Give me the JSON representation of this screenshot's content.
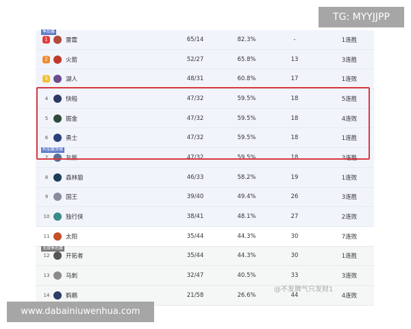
{
  "overlay": {
    "tg": "TG: MYYJJPP",
    "site": "www.dabainiuwenhua.com",
    "watermark": "@不发脾气只发财1"
  },
  "tags": {
    "playoffs": "季后赛",
    "playin": "附加赛资格",
    "out": "无缘季后赛"
  },
  "colors": {
    "highlight": "#d9363e",
    "tag": "#5b78c8"
  },
  "rows": [
    {
      "rank": "1",
      "team": "雷霆",
      "record": "65/14",
      "pct": "82.3%",
      "gb": "-",
      "streak": "1连胜"
    },
    {
      "rank": "2",
      "team": "火箭",
      "record": "52/27",
      "pct": "65.8%",
      "gb": "13",
      "streak": "3连胜"
    },
    {
      "rank": "3",
      "team": "湖人",
      "record": "48/31",
      "pct": "60.8%",
      "gb": "17",
      "streak": "1连败"
    },
    {
      "rank": "4",
      "team": "快船",
      "record": "47/32",
      "pct": "59.5%",
      "gb": "18",
      "streak": "5连胜"
    },
    {
      "rank": "5",
      "team": "掘金",
      "record": "47/32",
      "pct": "59.5%",
      "gb": "18",
      "streak": "4连败"
    },
    {
      "rank": "6",
      "team": "勇士",
      "record": "47/32",
      "pct": "59.5%",
      "gb": "18",
      "streak": "1连胜"
    },
    {
      "rank": "7",
      "team": "灰熊",
      "record": "47/32",
      "pct": "59.5%",
      "gb": "18",
      "streak": "3连胜"
    },
    {
      "rank": "8",
      "team": "森林狼",
      "record": "46/33",
      "pct": "58.2%",
      "gb": "19",
      "streak": "1连败"
    },
    {
      "rank": "9",
      "team": "国王",
      "record": "39/40",
      "pct": "49.4%",
      "gb": "26",
      "streak": "3连胜"
    },
    {
      "rank": "10",
      "team": "独行侠",
      "record": "38/41",
      "pct": "48.1%",
      "gb": "27",
      "streak": "2连败"
    },
    {
      "rank": "11",
      "team": "太阳",
      "record": "35/44",
      "pct": "44.3%",
      "gb": "30",
      "streak": "7连败"
    },
    {
      "rank": "12",
      "team": "开拓者",
      "record": "35/44",
      "pct": "44.3%",
      "gb": "30",
      "streak": "1连胜"
    },
    {
      "rank": "13",
      "team": "马刺",
      "record": "32/47",
      "pct": "40.5%",
      "gb": "33",
      "streak": "3连败"
    },
    {
      "rank": "14",
      "team": "鹈鹕",
      "record": "21/58",
      "pct": "26.6%",
      "gb": "44",
      "streak": "4连败"
    }
  ]
}
